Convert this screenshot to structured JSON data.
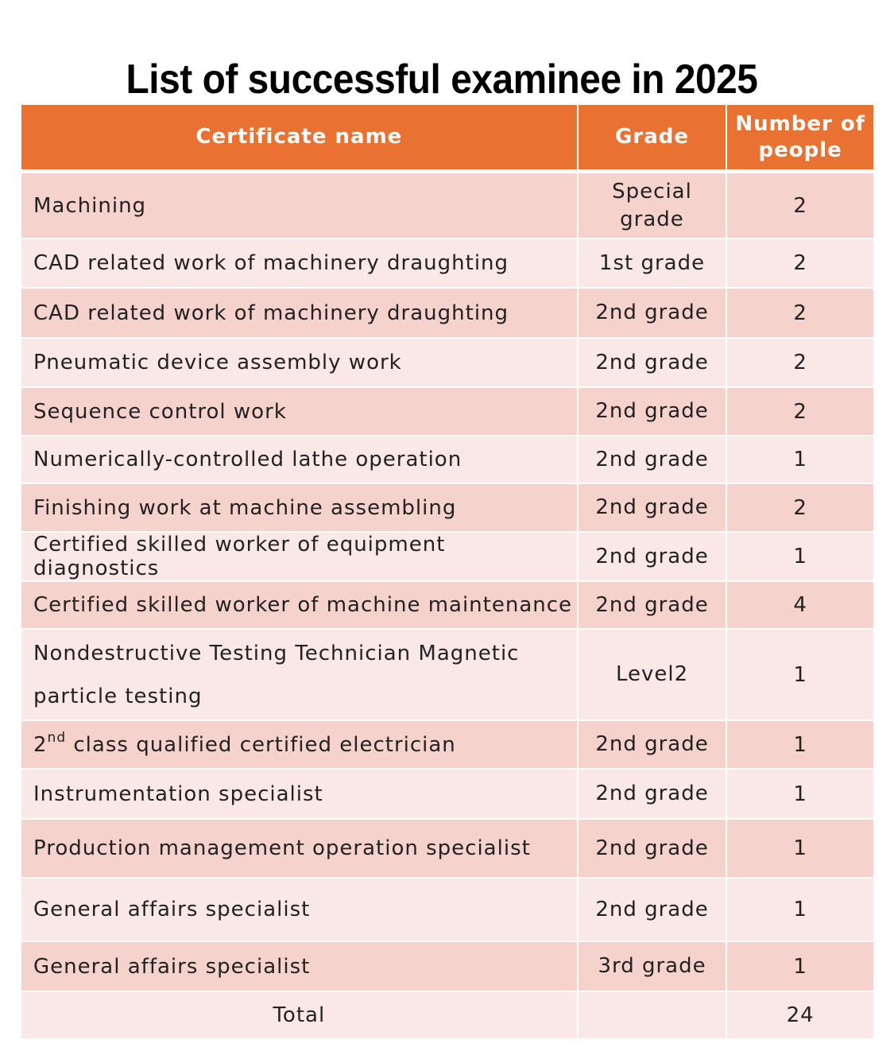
{
  "title": "List of successful examinee in 2025",
  "table": {
    "headers": {
      "certificate": "Certificate name",
      "grade": "Grade",
      "count": "Number of people"
    },
    "rows": [
      {
        "name": "Machining",
        "grade": "Special grade",
        "count": "2"
      },
      {
        "name": "CAD related work of machinery draughting",
        "grade": "1st grade",
        "count": "2"
      },
      {
        "name": "CAD related work of machinery draughting",
        "grade": "2nd grade",
        "count": "2"
      },
      {
        "name": "Pneumatic device assembly work",
        "grade": "2nd grade",
        "count": "2"
      },
      {
        "name": "Sequence control work",
        "grade": "2nd grade",
        "count": "2"
      },
      {
        "name": "Numerically-controlled lathe operation",
        "grade": "2nd grade",
        "count": "1"
      },
      {
        "name": "Finishing work at machine assembling",
        "grade": "2nd grade",
        "count": "2"
      },
      {
        "name": "Certified skilled worker of equipment diagnostics",
        "grade": "2nd grade",
        "count": "1"
      },
      {
        "name": "Certified skilled worker of machine maintenance",
        "grade": "2nd grade",
        "count": "4"
      },
      {
        "name": "Nondestructive Testing Technician Magnetic particle testing",
        "grade": "Level2",
        "count": "1"
      },
      {
        "name_prefix": "2",
        "name_sup": "nd",
        "name": " class qualified certified electrician",
        "grade": "2nd grade",
        "count": "1"
      },
      {
        "name": "Instrumentation specialist",
        "grade": "2nd grade",
        "count": "1"
      },
      {
        "name": "Production management operation specialist",
        "grade": "2nd grade",
        "count": "1"
      },
      {
        "name": "General affairs specialist",
        "grade": "2nd grade",
        "count": "1"
      },
      {
        "name": "General affairs specialist",
        "grade": "3rd grade",
        "count": "1"
      }
    ],
    "total": {
      "label": "Total",
      "grade": "",
      "count": "24"
    }
  },
  "colors": {
    "header": "#E97132",
    "row_dark": "#F6D2CC",
    "row_light": "#FAE8E6"
  }
}
